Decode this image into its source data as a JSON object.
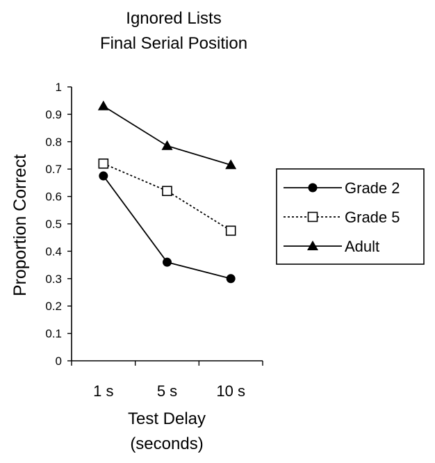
{
  "chart_data": {
    "type": "line",
    "title": [
      "Ignored Lists",
      "Final Serial Position"
    ],
    "xlabel": [
      "Test Delay",
      "(seconds)"
    ],
    "ylabel": "Proportion Correct",
    "categories": [
      "1 s",
      "5 s",
      "10 s"
    ],
    "ylim": [
      0,
      1
    ],
    "yticks": [
      "0",
      "0.1",
      "0.2",
      "0.3",
      "0.4",
      "0.5",
      "0.6",
      "0.7",
      "0.8",
      "0.9",
      "1"
    ],
    "grid": false,
    "legend_position": "right",
    "series": [
      {
        "name": "Grade 2",
        "values": [
          0.675,
          0.36,
          0.3
        ],
        "marker": "circle",
        "line": "solid",
        "color": "#000000"
      },
      {
        "name": "Grade 5",
        "values": [
          0.72,
          0.62,
          0.475
        ],
        "marker": "square-open",
        "line": "dotted",
        "color": "#000000"
      },
      {
        "name": "Adult",
        "values": [
          0.93,
          0.785,
          0.715
        ],
        "marker": "triangle",
        "line": "solid",
        "color": "#000000"
      }
    ]
  }
}
